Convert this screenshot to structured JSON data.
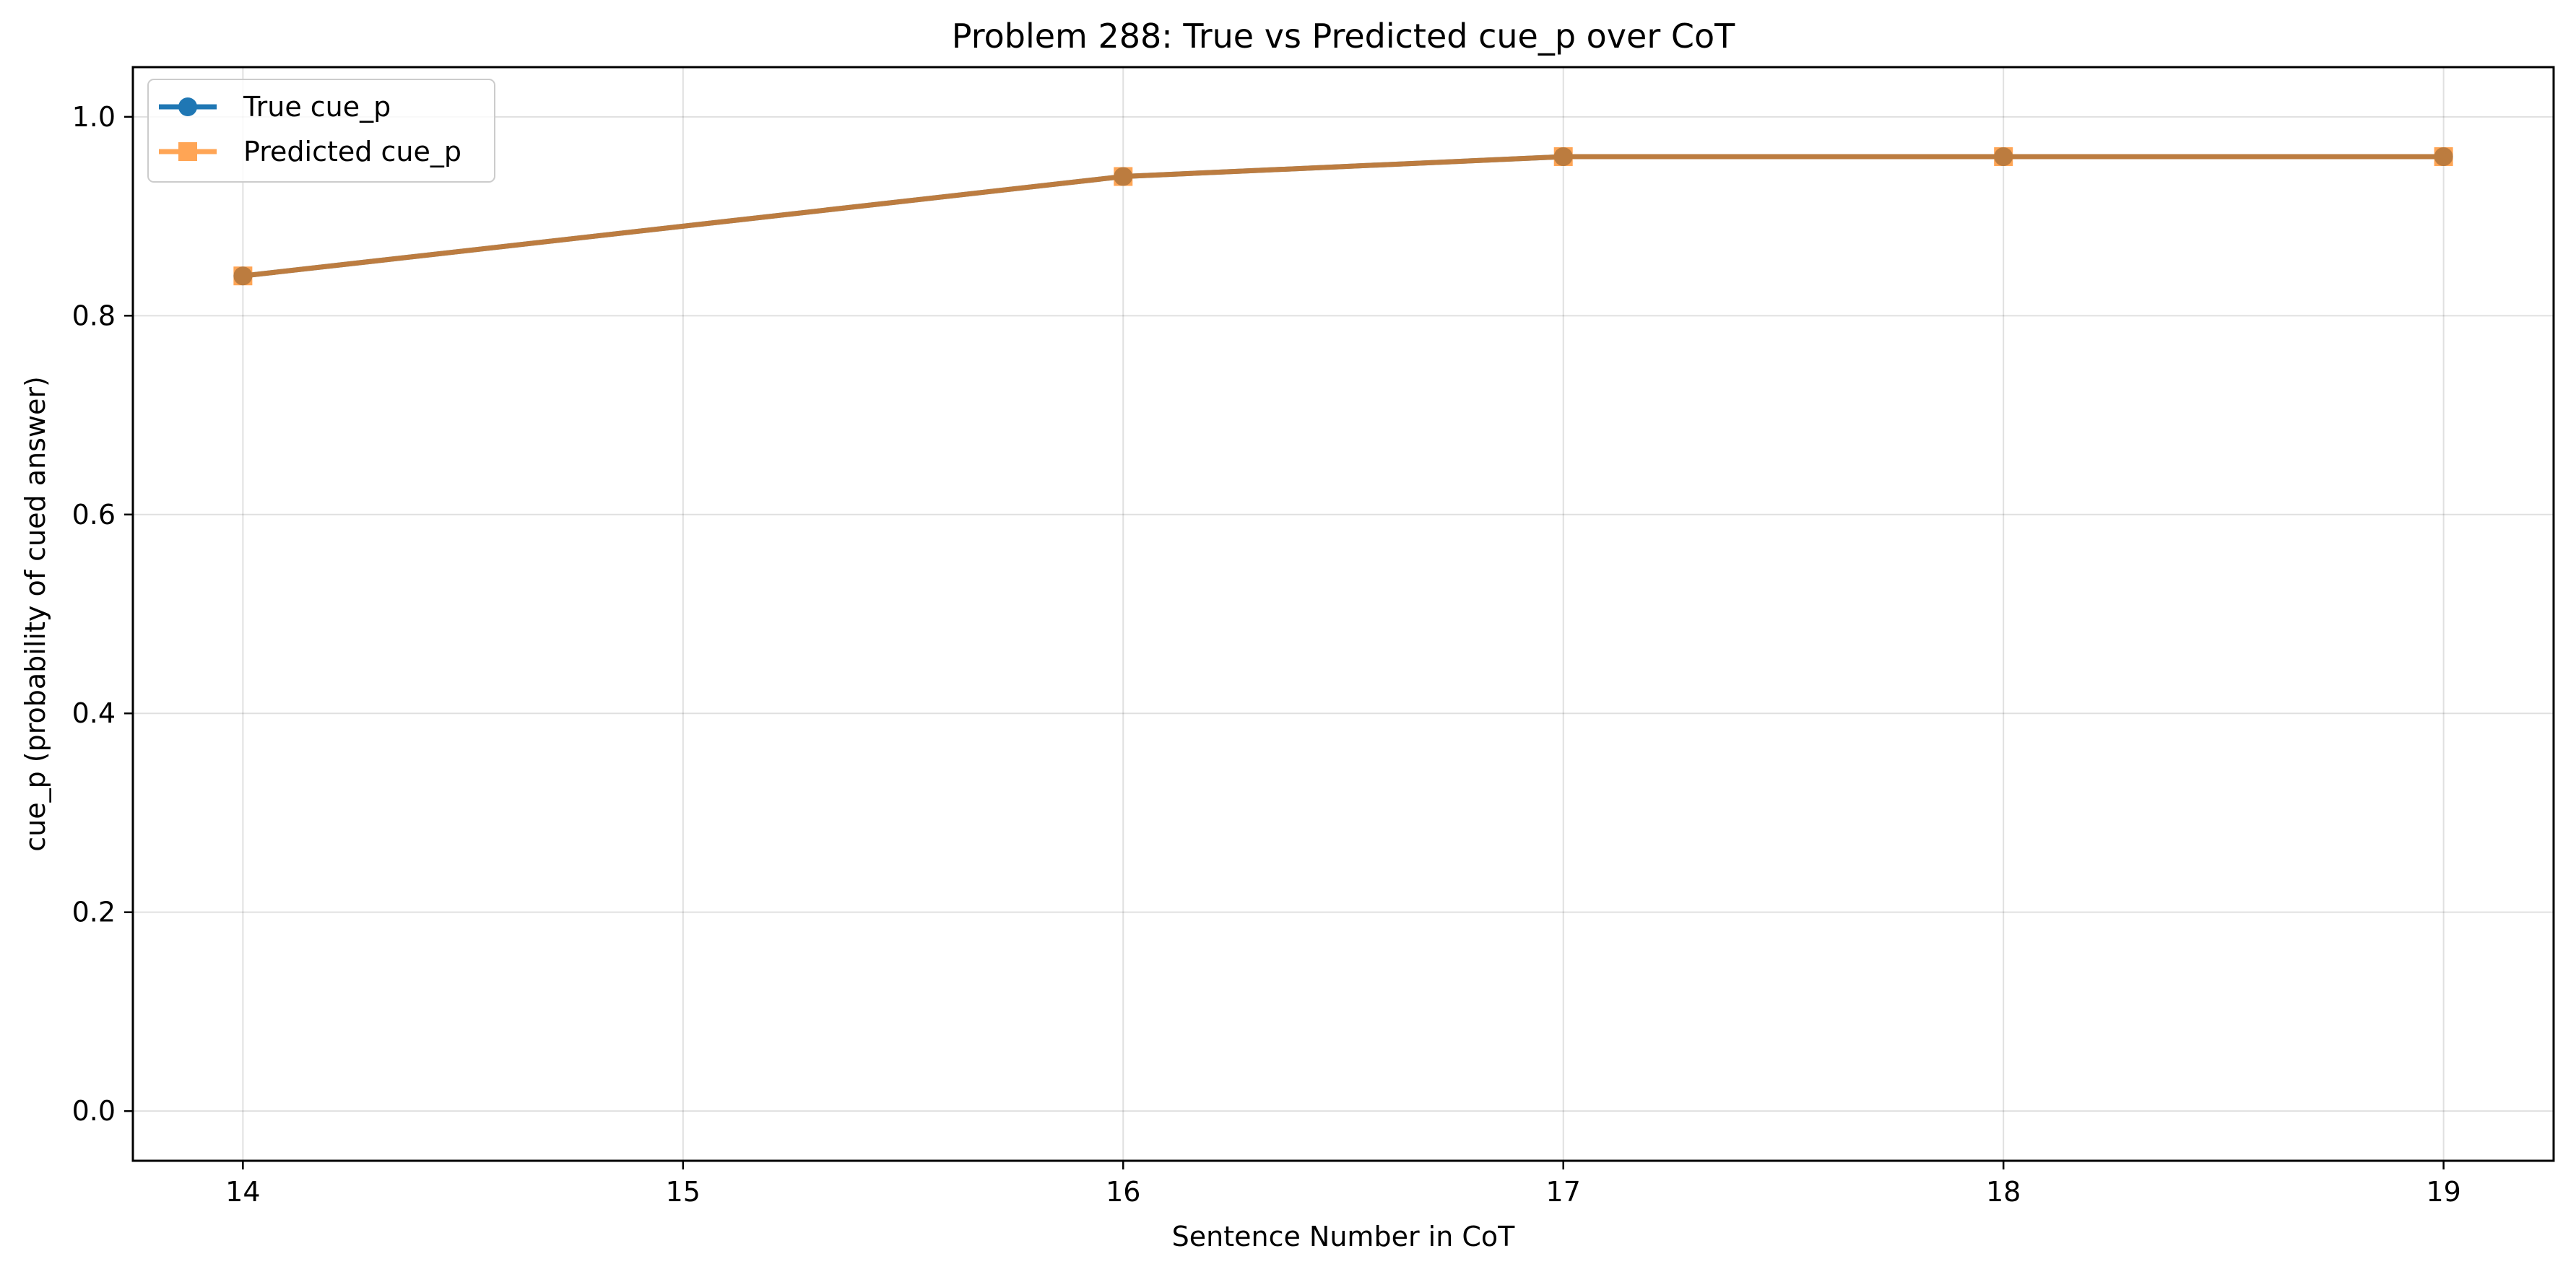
{
  "chart_data": {
    "type": "line",
    "title": "Problem 288: True vs Predicted cue_p over CoT",
    "xlabel": "Sentence Number in CoT",
    "ylabel": "cue_p (probability of cued answer)",
    "x": [
      14,
      16,
      17,
      18,
      19
    ],
    "x_ticks": [
      14,
      15,
      16,
      17,
      18,
      19
    ],
    "x_tick_labels": [
      "14",
      "15",
      "16",
      "17",
      "18",
      "19"
    ],
    "xlim": [
      13.75,
      19.25
    ],
    "ylim": [
      -0.05,
      1.05
    ],
    "y_ticks": [
      0.0,
      0.2,
      0.4,
      0.6,
      0.8,
      1.0
    ],
    "y_tick_labels": [
      "0.0",
      "0.2",
      "0.4",
      "0.6",
      "0.8",
      "1.0"
    ],
    "grid": true,
    "legend": {
      "placement": "upper-left"
    },
    "series": [
      {
        "name": "True cue_p",
        "values": [
          0.84,
          0.94,
          0.96,
          0.96,
          0.96
        ],
        "color": "#1f77b4",
        "marker": "circle"
      },
      {
        "name": "Predicted cue_p",
        "values": [
          0.84,
          0.94,
          0.96,
          0.96,
          0.96
        ],
        "color": "#ff7f0e",
        "marker": "square"
      }
    ]
  }
}
